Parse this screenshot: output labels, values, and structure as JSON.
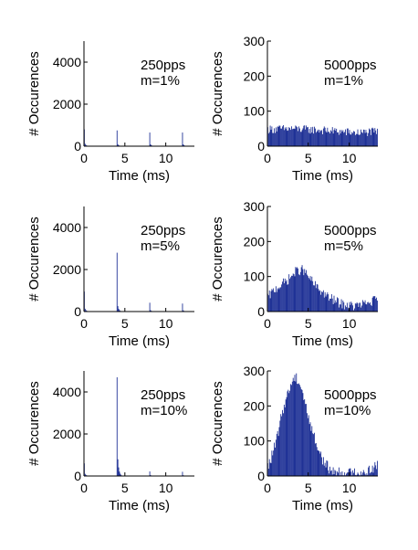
{
  "figure": {
    "bar_color": "#0a1e8c",
    "axis_color": "#000000"
  },
  "chart_data": [
    {
      "id": "p250_m1",
      "type": "bar",
      "annotation": [
        "250pps",
        "m=1%"
      ],
      "xlabel": "Time (ms)",
      "ylabel": "# Occurences",
      "xlim": [
        0,
        13.5
      ],
      "ylim": [
        0,
        5000
      ],
      "xticks": [
        0,
        5,
        10
      ],
      "yticks": [
        0,
        2000,
        4000
      ],
      "bin_width_ms": 0.1,
      "peaks": [
        {
          "t": 0.05,
          "h": 800,
          "w": 0.1,
          "tail": 220
        },
        {
          "t": 4.05,
          "h": 750,
          "w": 0.08,
          "tail": 180
        },
        {
          "t": 8.05,
          "h": 650,
          "w": 0.08,
          "tail": 170
        },
        {
          "t": 12.05,
          "h": 650,
          "w": 0.08,
          "tail": 170
        }
      ],
      "baseline": 6
    },
    {
      "id": "p5000_m1",
      "type": "bar",
      "annotation": [
        "5000pps",
        "m=1%"
      ],
      "xlabel": "Time (ms)",
      "ylabel": "# Occurences",
      "xlim": [
        0,
        13.5
      ],
      "ylim": [
        0,
        300
      ],
      "xticks": [
        0,
        5,
        10
      ],
      "yticks": [
        0,
        100,
        200,
        300
      ],
      "bin_width_ms": 0.1,
      "profile": [
        [
          0,
          48
        ],
        [
          3,
          50
        ],
        [
          7,
          45
        ],
        [
          11,
          38
        ],
        [
          13.5,
          42
        ]
      ],
      "noise": 12
    },
    {
      "id": "p250_m5",
      "type": "bar",
      "annotation": [
        "250pps",
        "m=5%"
      ],
      "xlabel": "Time (ms)",
      "ylabel": "# Occurences",
      "xlim": [
        0,
        13.5
      ],
      "ylim": [
        0,
        5000
      ],
      "xticks": [
        0,
        5,
        10
      ],
      "yticks": [
        0,
        2000,
        4000
      ],
      "bin_width_ms": 0.1,
      "peaks": [
        {
          "t": 0.05,
          "h": 950,
          "w": 0.1,
          "tail": 260
        },
        {
          "t": 4.05,
          "h": 2800,
          "w": 0.08,
          "tail": 500
        },
        {
          "t": 8.05,
          "h": 420,
          "w": 0.08,
          "tail": 120
        },
        {
          "t": 12.05,
          "h": 380,
          "w": 0.08,
          "tail": 110
        }
      ],
      "baseline": 6
    },
    {
      "id": "p5000_m5",
      "type": "bar",
      "annotation": [
        "5000pps",
        "m=5%"
      ],
      "xlabel": "Time (ms)",
      "ylabel": "# Occurences",
      "xlim": [
        0,
        13.5
      ],
      "ylim": [
        0,
        300
      ],
      "xticks": [
        0,
        5,
        10
      ],
      "yticks": [
        0,
        100,
        200,
        300
      ],
      "bin_width_ms": 0.1,
      "profile": [
        [
          0,
          40
        ],
        [
          1,
          65
        ],
        [
          2.5,
          90
        ],
        [
          3.5,
          115
        ],
        [
          4.3,
          120
        ],
        [
          5,
          100
        ],
        [
          6,
          70
        ],
        [
          7.5,
          40
        ],
        [
          9,
          22
        ],
        [
          10.5,
          15
        ],
        [
          12,
          22
        ],
        [
          13.5,
          35
        ]
      ],
      "noise": 14
    },
    {
      "id": "p250_m10",
      "type": "bar",
      "annotation": [
        "250pps",
        "m=10%"
      ],
      "xlabel": "Time (ms)",
      "ylabel": "# Occurences",
      "xlim": [
        0,
        13.5
      ],
      "ylim": [
        0,
        5000
      ],
      "xticks": [
        0,
        5,
        10
      ],
      "yticks": [
        0,
        2000,
        4000
      ],
      "bin_width_ms": 0.1,
      "peaks": [
        {
          "t": 0.05,
          "h": 600,
          "w": 0.1,
          "tail": 200
        },
        {
          "t": 4.05,
          "h": 4700,
          "w": 0.08,
          "tail": 1550
        },
        {
          "t": 8.05,
          "h": 220,
          "w": 0.08,
          "tail": 80
        },
        {
          "t": 12.05,
          "h": 200,
          "w": 0.08,
          "tail": 70
        }
      ],
      "baseline": 5
    },
    {
      "id": "p5000_m10",
      "type": "bar",
      "annotation": [
        "5000pps",
        "m=10%"
      ],
      "xlabel": "Time (ms)",
      "ylabel": "# Occurences",
      "xlim": [
        0,
        13.5
      ],
      "ylim": [
        0,
        300
      ],
      "xticks": [
        0,
        5,
        10
      ],
      "yticks": [
        0,
        100,
        200,
        300
      ],
      "bin_width_ms": 0.1,
      "profile": [
        [
          0,
          20
        ],
        [
          1,
          90
        ],
        [
          2,
          200
        ],
        [
          3,
          270
        ],
        [
          3.5,
          285
        ],
        [
          4.2,
          250
        ],
        [
          5,
          170
        ],
        [
          6,
          90
        ],
        [
          7,
          35
        ],
        [
          8,
          12
        ],
        [
          10,
          8
        ],
        [
          12,
          12
        ],
        [
          13.5,
          30
        ]
      ],
      "noise": 16
    }
  ]
}
